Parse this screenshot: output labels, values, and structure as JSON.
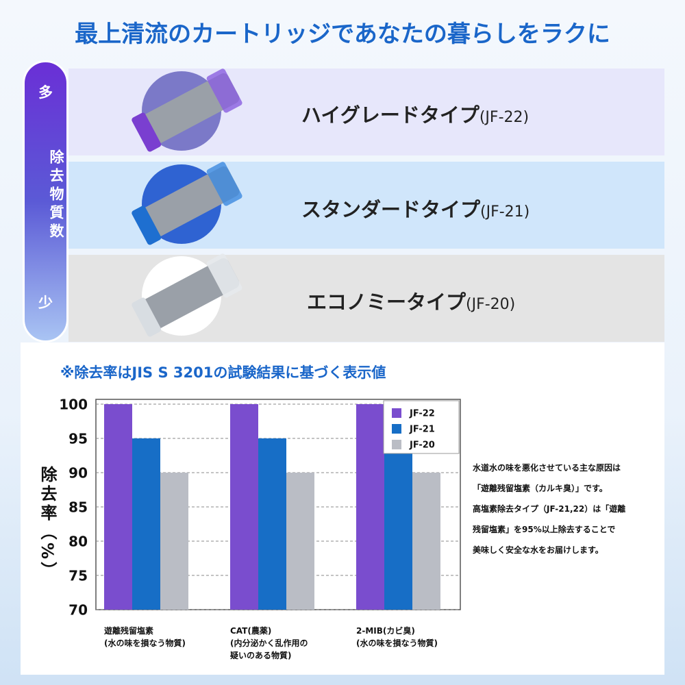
{
  "header": {
    "title": "最上清流のカートリッジであなたの暮らしをラクに"
  },
  "side": {
    "top": "多",
    "label": "除去物質数",
    "bottom": "少"
  },
  "products": [
    {
      "name": "ハイグレードタイプ",
      "model": "(JF-22)"
    },
    {
      "name": "スタンダードタイプ",
      "model": "(JF-21)"
    },
    {
      "name": "エコノミータイプ",
      "model": "(JF-20)"
    }
  ],
  "note": "※除去率はJIS S 3201の試験結果に基づく表示値",
  "description": [
    "水道水の味を悪化させている主な原因は",
    "「遊離残留塩素（カルキ臭）」です。",
    "高塩素除去タイプ（JF-21,22）は「遊離",
    "残留塩素」を95%以上除去することで",
    "美味しく安全な水をお届けします。"
  ],
  "chart_data": {
    "type": "bar",
    "y_label": "除去率（%）",
    "categories": [
      "遊離残留塩素\n(水の味を損なう物質)",
      "CAT(農薬)\n(内分泌かく乱作用の\n疑いのある物質)",
      "2-MIB(カビ臭)\n(水の味を損なう物質)"
    ],
    "series": [
      {
        "name": "JF-22",
        "color": "#7a4dce",
        "values": [
          100,
          100,
          100
        ]
      },
      {
        "name": "JF-21",
        "color": "#176ec6",
        "values": [
          95,
          95,
          95
        ]
      },
      {
        "name": "JF-20",
        "color": "#babdc5",
        "values": [
          90,
          90,
          90
        ]
      }
    ],
    "ylim": [
      70,
      100
    ],
    "yticks": [
      70,
      75,
      80,
      85,
      90,
      95,
      100
    ],
    "grid": true,
    "legend": "top-right"
  }
}
